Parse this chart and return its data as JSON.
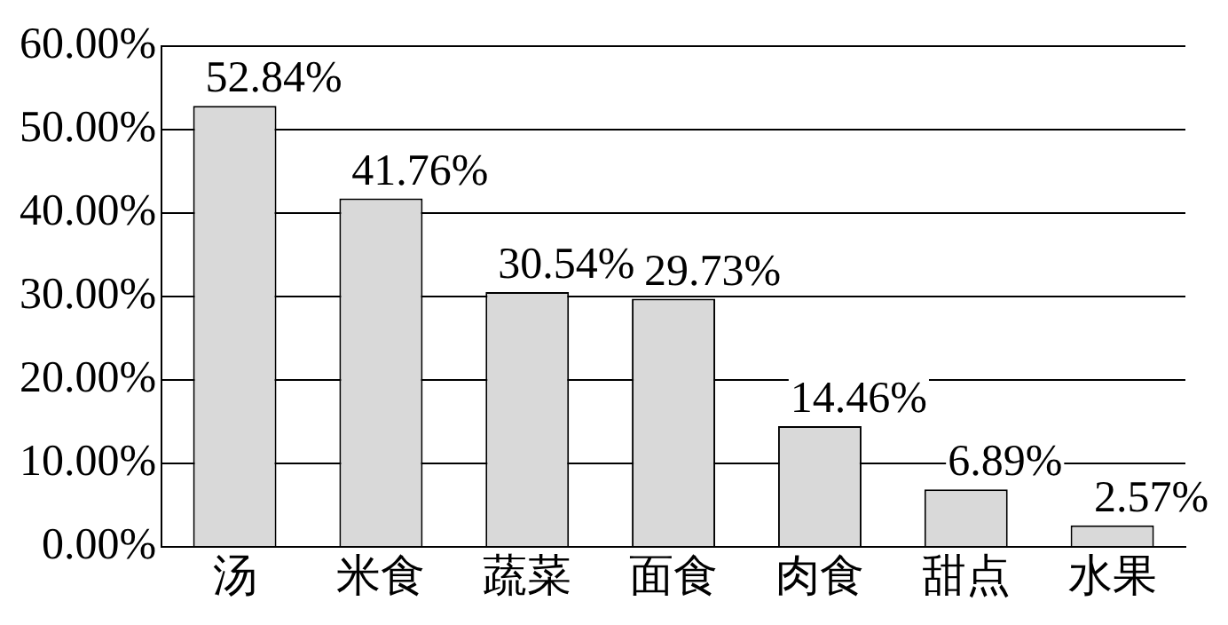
{
  "chart_data": {
    "type": "bar",
    "categories": [
      "汤",
      "米食",
      "蔬菜",
      "面食",
      "肉食",
      "甜点",
      "水果"
    ],
    "values": [
      52.84,
      41.76,
      30.54,
      29.73,
      14.46,
      6.89,
      2.57
    ],
    "value_labels": [
      "52.84%",
      "41.76%",
      "30.54%",
      "29.73%",
      "14.46%",
      "6.89%",
      "2.57%"
    ],
    "color": "#d9d9d9",
    "ylim": [
      0,
      60
    ],
    "yticks": [
      {
        "value": 0,
        "label": "0.00%"
      },
      {
        "value": 10,
        "label": "10.00%"
      },
      {
        "value": 20,
        "label": "20.00%"
      },
      {
        "value": 30,
        "label": "30.00%"
      },
      {
        "value": 40,
        "label": "40.00%"
      },
      {
        "value": 50,
        "label": "50.00%"
      },
      {
        "value": 60,
        "label": "60.00%"
      }
    ],
    "grid": "y",
    "legend": false
  }
}
